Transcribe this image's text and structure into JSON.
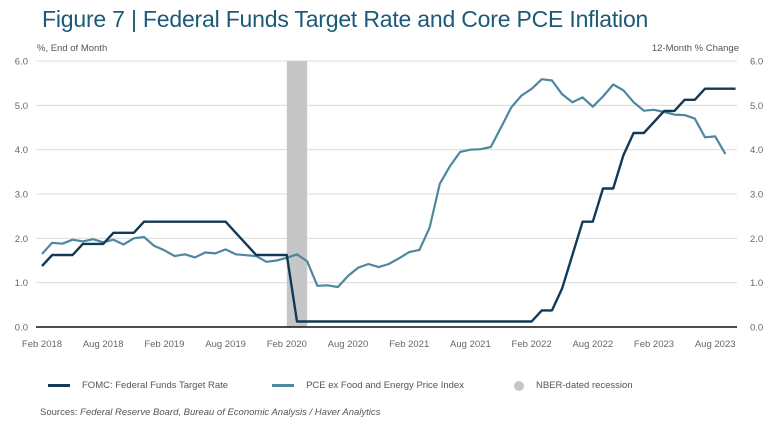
{
  "title": "Figure 7 | Federal Funds Target Rate and Core PCE Inflation",
  "left_axis_label": "%, End of Month",
  "right_axis_label": "12-Month % Change",
  "legend": [
    {
      "label": "FOMC: Federal Funds Target Rate",
      "color": "#123a56",
      "kind": "line"
    },
    {
      "label": "PCE ex Food and Energy Price Index",
      "color": "#4f879e",
      "kind": "line"
    },
    {
      "label": "NBER-dated recession",
      "color": "#c6c6c6",
      "kind": "dot"
    }
  ],
  "sources_prefix": "Sources: ",
  "sources_text": "Federal Reserve Board, Bureau of Economic Analysis / Haver Analytics",
  "chart_data": {
    "type": "line",
    "title": "Figure 7 | Federal Funds Target Rate and Core PCE Inflation",
    "xlabel": "",
    "ylabel_left": "%, End of Month",
    "ylabel_right": "12-Month % Change",
    "ylim": [
      0,
      6
    ],
    "yticks": [
      "0.0",
      "1.0",
      "2.0",
      "3.0",
      "4.0",
      "5.0",
      "6.0"
    ],
    "xticks": [
      "Feb 2018",
      "Aug 2018",
      "Feb 2019",
      "Aug 2019",
      "Feb 2020",
      "Aug 2020",
      "Feb 2021",
      "Aug 2021",
      "Feb 2022",
      "Aug 2022",
      "Feb 2023",
      "Aug 2023"
    ],
    "x_start": "Feb 2018",
    "x_step": "month",
    "grid": true,
    "legend_position": "bottom",
    "recession": {
      "start": "Feb 2020",
      "end": "Apr 2020",
      "start_index": 24,
      "end_index": 26
    },
    "series": [
      {
        "name": "FOMC: Federal Funds Target Rate",
        "color": "#123a56",
        "values": [
          1.375,
          1.625,
          1.625,
          1.625,
          1.875,
          1.875,
          1.875,
          2.125,
          2.125,
          2.125,
          2.375,
          2.375,
          2.375,
          2.375,
          2.375,
          2.375,
          2.375,
          2.375,
          2.375,
          2.125,
          1.875,
          1.625,
          1.625,
          1.625,
          1.625,
          0.125,
          0.125,
          0.125,
          0.125,
          0.125,
          0.125,
          0.125,
          0.125,
          0.125,
          0.125,
          0.125,
          0.125,
          0.125,
          0.125,
          0.125,
          0.125,
          0.125,
          0.125,
          0.125,
          0.125,
          0.125,
          0.125,
          0.125,
          0.125,
          0.375,
          0.375,
          0.875,
          1.625,
          2.375,
          2.375,
          3.125,
          3.125,
          3.875,
          4.375,
          4.375,
          4.625,
          4.875,
          4.875,
          5.125,
          5.125,
          5.375,
          5.375,
          5.375,
          5.375
        ]
      },
      {
        "name": "PCE ex Food and Energy Price Index",
        "color": "#4f879e",
        "values": [
          1.65,
          1.9,
          1.88,
          1.97,
          1.93,
          1.98,
          1.91,
          1.97,
          1.86,
          2.0,
          2.03,
          1.83,
          1.73,
          1.6,
          1.64,
          1.57,
          1.68,
          1.66,
          1.75,
          1.64,
          1.62,
          1.6,
          1.47,
          1.5,
          1.56,
          1.64,
          1.48,
          0.93,
          0.94,
          0.9,
          1.15,
          1.34,
          1.42,
          1.35,
          1.42,
          1.55,
          1.69,
          1.74,
          2.24,
          3.23,
          3.63,
          3.95,
          4.0,
          4.01,
          4.06,
          4.5,
          4.95,
          5.22,
          5.37,
          5.59,
          5.56,
          5.25,
          5.07,
          5.18,
          4.97,
          5.2,
          5.47,
          5.34,
          5.07,
          4.88,
          4.9,
          4.85,
          4.79,
          4.78,
          4.7,
          4.28,
          4.3,
          3.9
        ]
      }
    ]
  }
}
